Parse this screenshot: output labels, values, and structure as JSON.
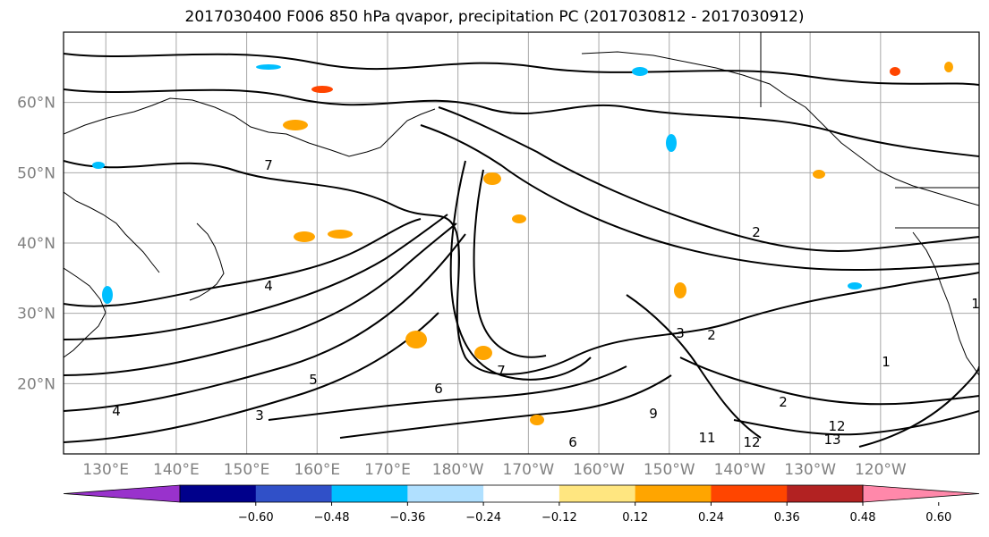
{
  "title": "2017030400 F006 850 hPa qvapor, precipitation PC (2017030812 - 2017030912)",
  "map": {
    "lat_labels": [
      "60°N",
      "50°N",
      "40°N",
      "30°N",
      "20°N"
    ],
    "lon_labels": [
      "130°E",
      "140°E",
      "150°E",
      "160°E",
      "170°E",
      "180°W",
      "170°W",
      "160°W",
      "150°W",
      "140°W",
      "130°W",
      "120°W"
    ],
    "lat_values": [
      60,
      50,
      40,
      30,
      20
    ],
    "lon_values": [
      130,
      140,
      150,
      160,
      170,
      180,
      190,
      200,
      210,
      220,
      230,
      240
    ],
    "extent": {
      "lon_min": 124,
      "lon_max": 254,
      "lat_min": 10,
      "lat_max": 70
    },
    "contour_labels": [
      "4",
      "7",
      "4",
      "3",
      "5",
      "6",
      "7",
      "2",
      "3",
      "2",
      "1",
      "2",
      "6",
      "9",
      "11",
      "12",
      "12",
      "13",
      "1"
    ],
    "land_color": "#ffffff",
    "contour_color": "#000000"
  },
  "colorbar": {
    "ticks": [
      "−0.60",
      "−0.48",
      "−0.36",
      "−0.24",
      "−0.12",
      "0.12",
      "0.24",
      "0.36",
      "0.48",
      "0.60"
    ],
    "colors": [
      "#9932cc",
      "#00008b",
      "#3050c8",
      "#00bfff",
      "#b0e0ff",
      "#ffffff",
      "#ffe680",
      "#ffa500",
      "#ff4500",
      "#b22222",
      "#ff88aa"
    ],
    "extend": "both"
  }
}
